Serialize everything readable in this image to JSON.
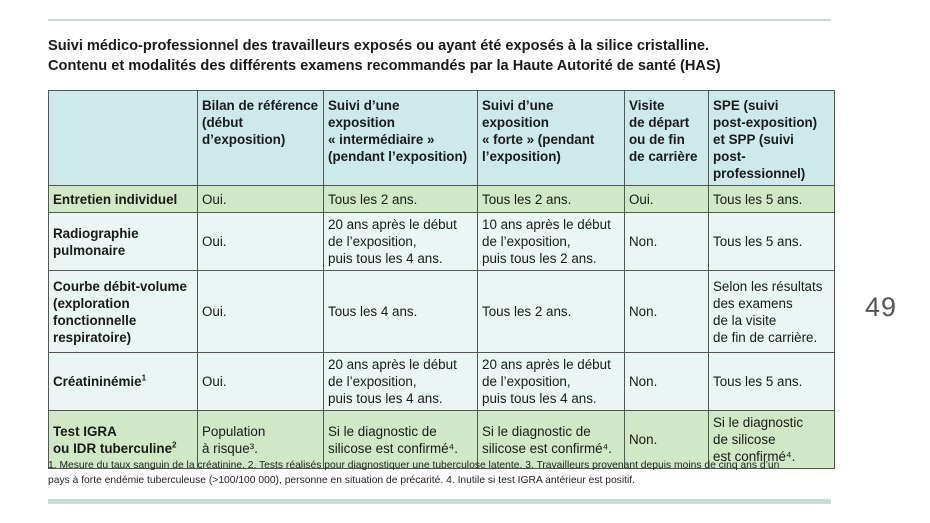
{
  "title": {
    "line1": "Suivi médico-professionnel des travailleurs exposés ou ayant été exposés à la silice cristalline.",
    "line2": "Contenu et modalités des différents examens recommandés par la Haute Autorité de santé (HAS)"
  },
  "page_number": "49",
  "table": {
    "headers": [
      [],
      [
        "Bilan de référence",
        "(début",
        "d’exposition)"
      ],
      [
        "Suivi d’une",
        "exposition",
        "« intermédiaire »",
        "(pendant l’exposition)"
      ],
      [
        "Suivi d’une",
        "exposition",
        "« forte » (pendant",
        "l’exposition)"
      ],
      [
        "Visite",
        "de départ",
        "ou de fin",
        "de carrière"
      ],
      [
        "SPE (suivi",
        "post-exposition)",
        "et SPP (suivi",
        "post-professionnel)"
      ]
    ],
    "rows": [
      {
        "label": [
          "Entretien individuel"
        ],
        "label_sup": "",
        "cells": [
          [
            "Oui."
          ],
          [
            "Tous les 2 ans."
          ],
          [
            "Tous les 2 ans."
          ],
          [
            "Oui."
          ],
          [
            "Tous les 5 ans."
          ]
        ]
      },
      {
        "label": [
          "Radiographie",
          "pulmonaire"
        ],
        "label_sup": "",
        "cells": [
          [
            "Oui."
          ],
          [
            "20 ans après le début",
            "de l’exposition,",
            "puis tous les 4 ans."
          ],
          [
            "10 ans après le début",
            "de l’exposition,",
            "puis tous les 2 ans."
          ],
          [
            "Non."
          ],
          [
            "Tous les 5 ans."
          ]
        ]
      },
      {
        "label": [
          "Courbe débit-volume",
          "(exploration",
          "fonctionnelle",
          "respiratoire)"
        ],
        "label_sup": "",
        "cells": [
          [
            "Oui."
          ],
          [
            "Tous les 4 ans."
          ],
          [
            "Tous les 2 ans."
          ],
          [
            "Non."
          ],
          [
            "Selon les résultats",
            "des examens",
            "de la visite",
            "de fin de carrière."
          ]
        ]
      },
      {
        "label": [
          "Créatininémie"
        ],
        "label_sup": "1",
        "cells": [
          [
            "Oui."
          ],
          [
            "20 ans après le début",
            "de l’exposition,",
            "puis tous les 4 ans."
          ],
          [
            "20 ans après le début",
            "de l’exposition,",
            "puis tous les 4 ans."
          ],
          [
            "Non."
          ],
          [
            "Tous les 5 ans."
          ]
        ]
      },
      {
        "label": [
          "Test IGRA",
          "ou IDR tuberculine"
        ],
        "label_sup": "2",
        "cells": [
          [
            "Population",
            "à risque³."
          ],
          [
            "Si le diagnostic de",
            "silicose est confirmé⁴."
          ],
          [
            "Si le diagnostic de",
            "silicose est confirmé⁴."
          ],
          [
            "Non."
          ],
          [
            "Si le diagnostic",
            "de silicose",
            "est confirmé⁴."
          ]
        ]
      }
    ]
  },
  "footnote": {
    "line1": "1. Mesure du taux sanguin de la créatinine. 2. Tests réalisés pour diagnostiquer une tuberculose latente. 3. Travailleurs provenant depuis moins de cinq ans d’un",
    "line2": "pays à forte endémie tuberculeuse (>100/100 000), personne en situation de précarité. 4. Inutile si test IGRA antérieur est positif."
  },
  "colors": {
    "header_bg": "#cde9ea",
    "green_row_bg": "#cfe9c6",
    "pale_row_bg": "#eaf6f3",
    "rule": "#c9dcd7"
  }
}
